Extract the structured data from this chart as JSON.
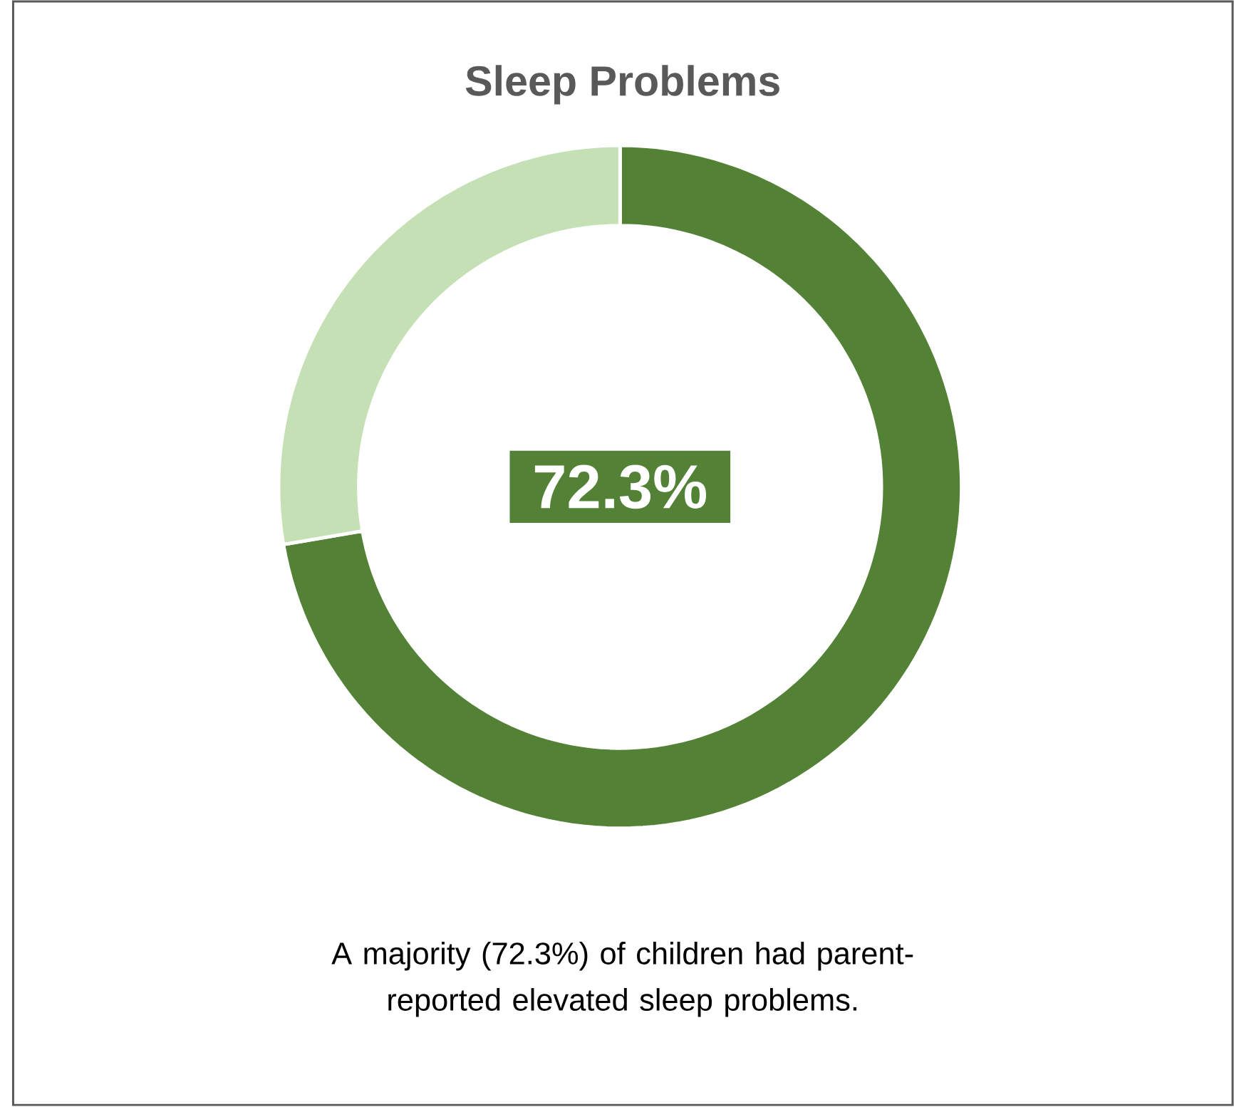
{
  "chart_data": {
    "type": "donut",
    "title": "Sleep Problems",
    "categories": [
      null,
      null
    ],
    "values": [
      72.3,
      27.7
    ],
    "colors": [
      "#538135",
      "#c5e0b4"
    ],
    "value_labels": [
      "72.3%",
      null
    ],
    "annotations": [
      "A majority (72.3%) of children had parent-reported elevated sleep problems."
    ]
  }
}
